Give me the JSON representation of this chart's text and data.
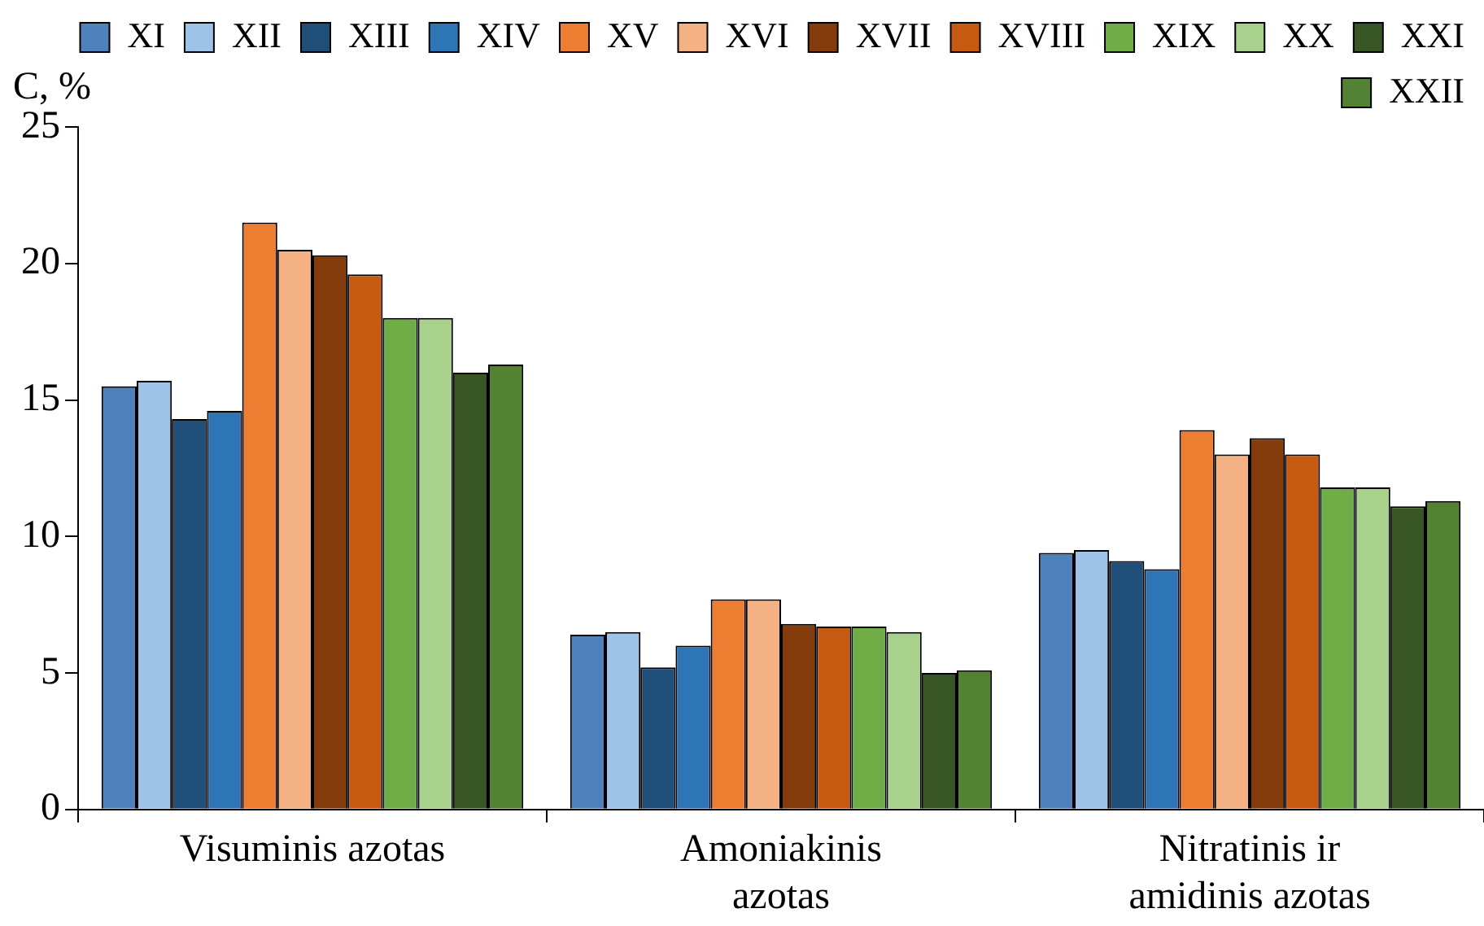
{
  "chart_data": {
    "type": "bar",
    "ylabel": "C, %",
    "categories": [
      "Visuminis azotas",
      "Amoniakinis azotas",
      "Nitratinis ir amidinis azotas"
    ],
    "series": [
      {
        "name": "XI",
        "color": "#4f81bd",
        "values": [
          15.5,
          6.4,
          9.4
        ]
      },
      {
        "name": "XII",
        "color": "#9dc3e6",
        "values": [
          15.7,
          6.5,
          9.5
        ]
      },
      {
        "name": "XIII",
        "color": "#1f4e79",
        "values": [
          14.3,
          5.2,
          9.1
        ]
      },
      {
        "name": "XIV",
        "color": "#2e75b6",
        "values": [
          14.6,
          6.0,
          8.8
        ]
      },
      {
        "name": "XV",
        "color": "#ed7d31",
        "values": [
          21.5,
          7.7,
          13.9
        ]
      },
      {
        "name": "XVI",
        "color": "#f4b183",
        "values": [
          20.5,
          7.7,
          13.0
        ]
      },
      {
        "name": "XVII",
        "color": "#843c0c",
        "values": [
          20.3,
          6.8,
          13.6
        ]
      },
      {
        "name": "XVIII",
        "color": "#c55a11",
        "values": [
          19.6,
          6.7,
          13.0
        ]
      },
      {
        "name": "XIX",
        "color": "#70ad47",
        "values": [
          18.0,
          6.7,
          11.8
        ]
      },
      {
        "name": "XX",
        "color": "#a9d18e",
        "values": [
          18.0,
          6.5,
          11.8
        ]
      },
      {
        "name": "XXI",
        "color": "#375623",
        "values": [
          16.0,
          5.0,
          11.1
        ]
      },
      {
        "name": "XXII",
        "color": "#548235",
        "values": [
          16.3,
          5.1,
          11.3
        ]
      }
    ],
    "ylim": [
      0,
      25
    ],
    "yticks": [
      0,
      5,
      10,
      15,
      20,
      25
    ],
    "grid": false,
    "legend": "top right"
  }
}
